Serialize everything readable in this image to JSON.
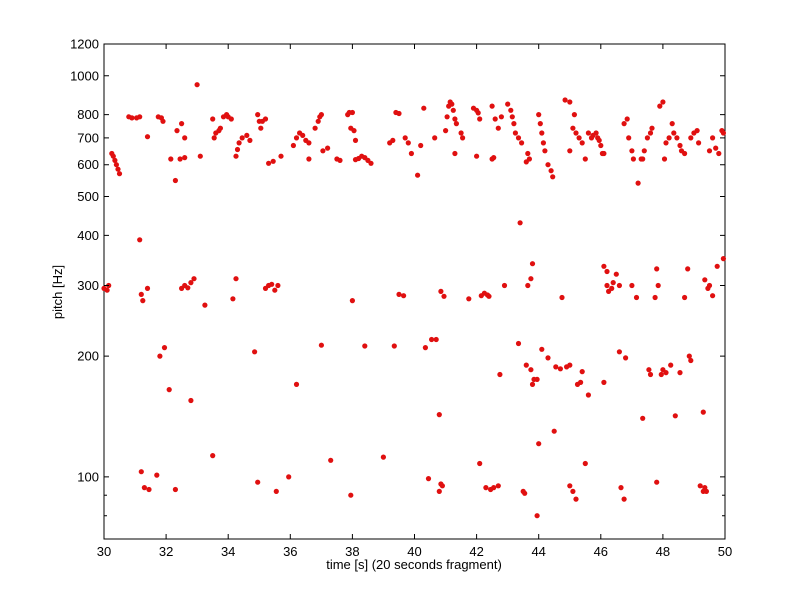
{
  "chart_data": {
    "type": "scatter",
    "title": "",
    "xlabel": "time [s] (20 seconds fragment)",
    "ylabel": "pitch [Hz]",
    "xlim": [
      30,
      50
    ],
    "ylim": [
      70,
      1200
    ],
    "yscale": "log",
    "grid": false,
    "legend": "none",
    "marker_color": "#e01010",
    "x_ticks": [
      30,
      32,
      34,
      36,
      38,
      40,
      42,
      44,
      46,
      48,
      50
    ],
    "x_tick_labels": [
      "30",
      "32",
      "34",
      "36",
      "38",
      "40",
      "42",
      "44",
      "46",
      "48",
      "50"
    ],
    "y_ticks": [
      100,
      200,
      300,
      400,
      500,
      600,
      700,
      800,
      1000,
      1200
    ],
    "y_tick_labels": [
      "100",
      "200",
      "300",
      "400",
      "500",
      "600",
      "700",
      "800",
      "1000",
      "1200"
    ],
    "y_minor_ticks": [
      80,
      90
    ],
    "points": [
      [
        30.0,
        295
      ],
      [
        30.1,
        292
      ],
      [
        30.15,
        300
      ],
      [
        30.25,
        640
      ],
      [
        30.3,
        630
      ],
      [
        30.35,
        615
      ],
      [
        30.4,
        600
      ],
      [
        30.45,
        585
      ],
      [
        30.5,
        570
      ],
      [
        30.8,
        790
      ],
      [
        30.9,
        785
      ],
      [
        31.05,
        785
      ],
      [
        31.15,
        790
      ],
      [
        31.4,
        705
      ],
      [
        31.15,
        390
      ],
      [
        31.2,
        285
      ],
      [
        31.25,
        275
      ],
      [
        31.4,
        295
      ],
      [
        31.2,
        103
      ],
      [
        31.3,
        94
      ],
      [
        31.45,
        93
      ],
      [
        31.7,
        101
      ],
      [
        31.75,
        790
      ],
      [
        31.85,
        785
      ],
      [
        31.9,
        770
      ],
      [
        31.8,
        200
      ],
      [
        31.95,
        210
      ],
      [
        32.1,
        165
      ],
      [
        32.15,
        620
      ],
      [
        32.3,
        548
      ],
      [
        32.45,
        620
      ],
      [
        32.6,
        625
      ],
      [
        32.35,
        730
      ],
      [
        32.5,
        760
      ],
      [
        32.6,
        700
      ],
      [
        32.3,
        93
      ],
      [
        32.5,
        295
      ],
      [
        32.6,
        300
      ],
      [
        32.7,
        296
      ],
      [
        32.8,
        305
      ],
      [
        32.9,
        312
      ],
      [
        32.8,
        155
      ],
      [
        33.0,
        950
      ],
      [
        33.1,
        630
      ],
      [
        33.25,
        268
      ],
      [
        33.5,
        780
      ],
      [
        33.55,
        700
      ],
      [
        33.6,
        720
      ],
      [
        33.75,
        740
      ],
      [
        33.85,
        790
      ],
      [
        33.95,
        800
      ],
      [
        33.5,
        113
      ],
      [
        33.7,
        730
      ],
      [
        34.0,
        790
      ],
      [
        34.1,
        780
      ],
      [
        34.15,
        278
      ],
      [
        34.25,
        312
      ],
      [
        34.25,
        630
      ],
      [
        34.3,
        655
      ],
      [
        34.35,
        680
      ],
      [
        34.45,
        700
      ],
      [
        34.6,
        710
      ],
      [
        34.7,
        690
      ],
      [
        34.85,
        205
      ],
      [
        34.95,
        97
      ],
      [
        34.95,
        800
      ],
      [
        35.0,
        770
      ],
      [
        35.05,
        740
      ],
      [
        35.1,
        770
      ],
      [
        35.2,
        780
      ],
      [
        35.3,
        300
      ],
      [
        35.4,
        302
      ],
      [
        35.5,
        292
      ],
      [
        35.6,
        300
      ],
      [
        35.2,
        295
      ],
      [
        35.3,
        605
      ],
      [
        35.45,
        612
      ],
      [
        35.55,
        92
      ],
      [
        35.7,
        630
      ],
      [
        35.95,
        100
      ],
      [
        36.1,
        670
      ],
      [
        36.2,
        700
      ],
      [
        36.3,
        720
      ],
      [
        36.4,
        710
      ],
      [
        36.5,
        690
      ],
      [
        36.6,
        680
      ],
      [
        36.2,
        170
      ],
      [
        36.6,
        620
      ],
      [
        36.8,
        740
      ],
      [
        36.9,
        770
      ],
      [
        36.95,
        790
      ],
      [
        37.0,
        800
      ],
      [
        37.0,
        213
      ],
      [
        37.05,
        650
      ],
      [
        37.2,
        660
      ],
      [
        37.3,
        110
      ],
      [
        37.5,
        620
      ],
      [
        37.6,
        615
      ],
      [
        37.85,
        800
      ],
      [
        37.9,
        810
      ],
      [
        38.0,
        810
      ],
      [
        37.95,
        740
      ],
      [
        38.05,
        730
      ],
      [
        38.1,
        690
      ],
      [
        38.0,
        275
      ],
      [
        37.95,
        90
      ],
      [
        38.1,
        618
      ],
      [
        38.2,
        622
      ],
      [
        38.3,
        630
      ],
      [
        38.4,
        625
      ],
      [
        38.5,
        615
      ],
      [
        38.6,
        605
      ],
      [
        38.4,
        212
      ],
      [
        39.0,
        112
      ],
      [
        39.2,
        680
      ],
      [
        39.3,
        690
      ],
      [
        39.4,
        810
      ],
      [
        39.5,
        805
      ],
      [
        39.35,
        212
      ],
      [
        39.5,
        285
      ],
      [
        39.65,
        283
      ],
      [
        39.7,
        700
      ],
      [
        39.8,
        680
      ],
      [
        39.9,
        640
      ],
      [
        40.1,
        565
      ],
      [
        40.2,
        670
      ],
      [
        40.3,
        830
      ],
      [
        40.35,
        210
      ],
      [
        40.45,
        99
      ],
      [
        40.55,
        220
      ],
      [
        40.65,
        700
      ],
      [
        40.7,
        220
      ],
      [
        40.8,
        143
      ],
      [
        40.8,
        92
      ],
      [
        40.85,
        96
      ],
      [
        40.9,
        95
      ],
      [
        40.85,
        290
      ],
      [
        40.95,
        282
      ],
      [
        41.0,
        730
      ],
      [
        41.05,
        790
      ],
      [
        41.1,
        840
      ],
      [
        41.15,
        860
      ],
      [
        41.2,
        850
      ],
      [
        41.25,
        820
      ],
      [
        41.3,
        780
      ],
      [
        41.35,
        760
      ],
      [
        41.3,
        640
      ],
      [
        41.5,
        720
      ],
      [
        41.55,
        700
      ],
      [
        41.75,
        278
      ],
      [
        41.9,
        830
      ],
      [
        42.0,
        820
      ],
      [
        42.05,
        808
      ],
      [
        42.1,
        780
      ],
      [
        42.0,
        630
      ],
      [
        42.15,
        283
      ],
      [
        42.25,
        287
      ],
      [
        42.35,
        284
      ],
      [
        42.4,
        282
      ],
      [
        42.1,
        108
      ],
      [
        42.3,
        94
      ],
      [
        42.45,
        93
      ],
      [
        42.55,
        94
      ],
      [
        42.7,
        95
      ],
      [
        42.5,
        840
      ],
      [
        42.6,
        780
      ],
      [
        42.7,
        740
      ],
      [
        42.8,
        790
      ],
      [
        42.5,
        620
      ],
      [
        42.55,
        625
      ],
      [
        42.75,
        180
      ],
      [
        42.9,
        300
      ],
      [
        43.0,
        850
      ],
      [
        43.1,
        820
      ],
      [
        43.15,
        790
      ],
      [
        43.2,
        760
      ],
      [
        43.25,
        720
      ],
      [
        43.35,
        700
      ],
      [
        43.45,
        680
      ],
      [
        43.4,
        430
      ],
      [
        43.35,
        215
      ],
      [
        43.6,
        190
      ],
      [
        43.65,
        640
      ],
      [
        43.7,
        620
      ],
      [
        43.6,
        610
      ],
      [
        43.75,
        185
      ],
      [
        43.8,
        170
      ],
      [
        43.85,
        175
      ],
      [
        43.95,
        175
      ],
      [
        43.65,
        300
      ],
      [
        43.75,
        312
      ],
      [
        43.8,
        340
      ],
      [
        43.5,
        92
      ],
      [
        43.55,
        91
      ],
      [
        43.95,
        80
      ],
      [
        44.0,
        121
      ],
      [
        44.0,
        800
      ],
      [
        44.05,
        760
      ],
      [
        44.1,
        720
      ],
      [
        44.15,
        680
      ],
      [
        44.2,
        650
      ],
      [
        44.3,
        600
      ],
      [
        44.4,
        580
      ],
      [
        44.45,
        560
      ],
      [
        44.1,
        208
      ],
      [
        44.3,
        198
      ],
      [
        44.55,
        188
      ],
      [
        44.7,
        186
      ],
      [
        44.9,
        188
      ],
      [
        45.0,
        190
      ],
      [
        44.5,
        130
      ],
      [
        44.75,
        280
      ],
      [
        44.85,
        870
      ],
      [
        45.0,
        860
      ],
      [
        45.15,
        800
      ],
      [
        45.1,
        740
      ],
      [
        45.2,
        720
      ],
      [
        45.3,
        700
      ],
      [
        45.4,
        680
      ],
      [
        45.0,
        650
      ],
      [
        45.0,
        95
      ],
      [
        45.1,
        92
      ],
      [
        45.2,
        88
      ],
      [
        45.25,
        170
      ],
      [
        45.35,
        172
      ],
      [
        45.4,
        183
      ],
      [
        45.5,
        620
      ],
      [
        45.6,
        720
      ],
      [
        45.7,
        700
      ],
      [
        45.75,
        710
      ],
      [
        45.85,
        720
      ],
      [
        45.9,
        700
      ],
      [
        45.95,
        690
      ],
      [
        46.0,
        670
      ],
      [
        46.05,
        640
      ],
      [
        46.1,
        640
      ],
      [
        45.5,
        108
      ],
      [
        45.6,
        160
      ],
      [
        46.1,
        172
      ],
      [
        46.1,
        335
      ],
      [
        46.2,
        325
      ],
      [
        46.2,
        300
      ],
      [
        46.25,
        290
      ],
      [
        46.35,
        295
      ],
      [
        46.4,
        305
      ],
      [
        46.5,
        320
      ],
      [
        46.6,
        300
      ],
      [
        46.6,
        205
      ],
      [
        46.65,
        94
      ],
      [
        46.75,
        88
      ],
      [
        46.8,
        198
      ],
      [
        46.75,
        760
      ],
      [
        46.85,
        780
      ],
      [
        46.9,
        700
      ],
      [
        47.0,
        650
      ],
      [
        47.05,
        620
      ],
      [
        47.0,
        300
      ],
      [
        47.15,
        280
      ],
      [
        47.2,
        540
      ],
      [
        47.3,
        620
      ],
      [
        47.35,
        620
      ],
      [
        47.35,
        140
      ],
      [
        47.4,
        650
      ],
      [
        47.5,
        700
      ],
      [
        47.6,
        720
      ],
      [
        47.65,
        740
      ],
      [
        47.55,
        185
      ],
      [
        47.6,
        180
      ],
      [
        47.75,
        280
      ],
      [
        47.8,
        330
      ],
      [
        47.85,
        300
      ],
      [
        47.8,
        97
      ],
      [
        47.9,
        840
      ],
      [
        48.0,
        860
      ],
      [
        48.05,
        620
      ],
      [
        48.1,
        680
      ],
      [
        48.2,
        700
      ],
      [
        47.95,
        180
      ],
      [
        48.0,
        185
      ],
      [
        48.1,
        182
      ],
      [
        48.25,
        190
      ],
      [
        48.3,
        760
      ],
      [
        48.35,
        720
      ],
      [
        48.45,
        700
      ],
      [
        48.55,
        670
      ],
      [
        48.6,
        650
      ],
      [
        48.7,
        640
      ],
      [
        48.4,
        142
      ],
      [
        48.55,
        182
      ],
      [
        48.7,
        280
      ],
      [
        48.8,
        330
      ],
      [
        48.85,
        200
      ],
      [
        48.9,
        195
      ],
      [
        48.9,
        700
      ],
      [
        49.0,
        720
      ],
      [
        49.1,
        730
      ],
      [
        49.15,
        680
      ],
      [
        49.2,
        95
      ],
      [
        49.3,
        92
      ],
      [
        49.35,
        94
      ],
      [
        49.4,
        92
      ],
      [
        49.3,
        145
      ],
      [
        49.35,
        310
      ],
      [
        49.45,
        295
      ],
      [
        49.5,
        300
      ],
      [
        49.6,
        283
      ],
      [
        49.5,
        650
      ],
      [
        49.6,
        700
      ],
      [
        49.7,
        660
      ],
      [
        49.8,
        640
      ],
      [
        49.9,
        730
      ],
      [
        49.95,
        720
      ],
      [
        49.75,
        335
      ],
      [
        49.95,
        350
      ]
    ]
  }
}
